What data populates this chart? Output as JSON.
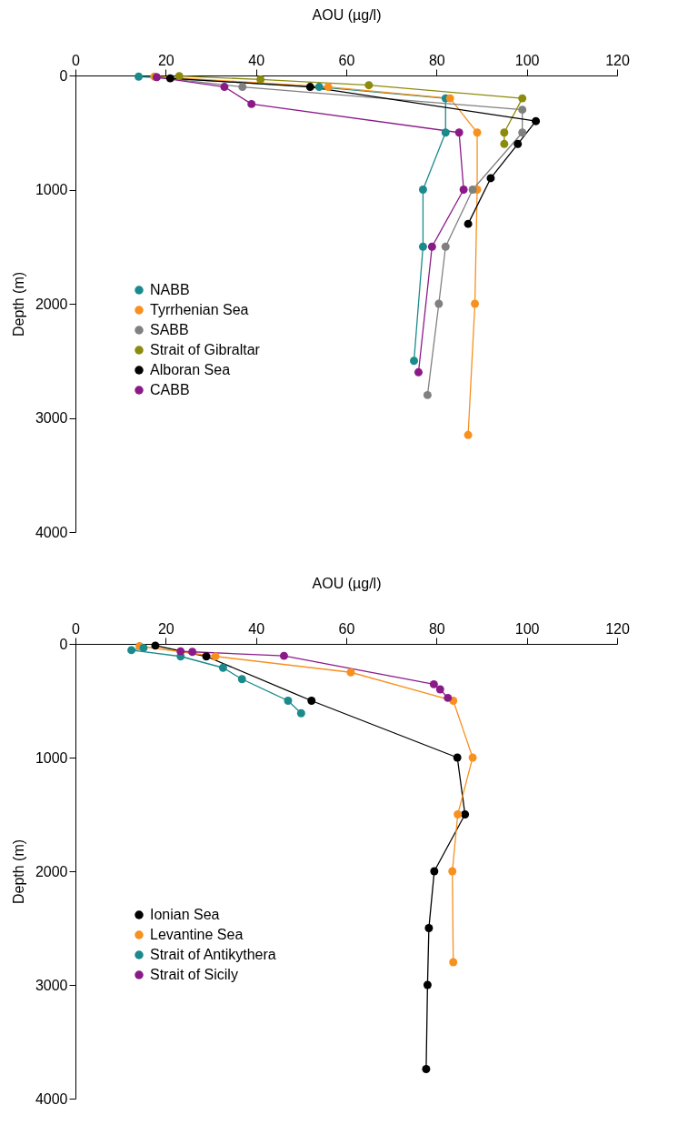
{
  "chart_data": [
    {
      "type": "line",
      "xlabel": "AOU (µg/l)",
      "ylabel": "Depth (m)",
      "xlim": [
        0,
        120
      ],
      "xticks": [
        0,
        20,
        40,
        60,
        80,
        100,
        120
      ],
      "ylim": [
        4000,
        0
      ],
      "yticks": [
        0,
        1000,
        2000,
        3000,
        4000
      ],
      "marker": "circle",
      "legend": "left",
      "series": [
        {
          "name": "NABB",
          "color": "#1b8a8c",
          "x": [
            14,
            54,
            82,
            82,
            77,
            77,
            75
          ],
          "values": [
            10,
            100,
            200,
            500,
            1000,
            1500,
            2500
          ]
        },
        {
          "name": "Tyrrhenian Sea",
          "color": "#f7901e",
          "x": [
            17.5,
            56,
            83,
            89,
            89,
            88.5,
            87
          ],
          "values": [
            10,
            100,
            200,
            500,
            1000,
            2000,
            3150
          ]
        },
        {
          "name": "SABB",
          "color": "#808080",
          "x": [
            18,
            37,
            99,
            99,
            88,
            82,
            80.5,
            78
          ],
          "values": [
            15,
            100,
            300,
            500,
            1000,
            1500,
            2000,
            2800
          ]
        },
        {
          "name": "Strait of Gibraltar",
          "color": "#8b8b0d",
          "x": [
            23,
            41,
            65,
            99,
            95,
            95
          ],
          "values": [
            5,
            35,
            85,
            200,
            500,
            600
          ]
        },
        {
          "name": "Alboran Sea",
          "color": "#000000",
          "x": [
            21,
            52,
            102,
            98,
            92,
            87
          ],
          "values": [
            25,
            100,
            400,
            600,
            900,
            1300
          ]
        },
        {
          "name": "CABB",
          "color": "#8b1a89",
          "x": [
            18,
            33,
            39,
            85,
            86,
            79,
            76
          ],
          "values": [
            15,
            100,
            250,
            500,
            1000,
            1500,
            2600
          ]
        }
      ]
    },
    {
      "type": "line",
      "xlabel": "AOU (µg/l)",
      "ylabel": "Depth (m)",
      "xlim": [
        0,
        120
      ],
      "xticks": [
        0,
        20,
        40,
        60,
        80,
        100,
        120
      ],
      "ylim": [
        4000,
        0
      ],
      "yticks": [
        0,
        1000,
        2000,
        3000,
        4000
      ],
      "marker": "circle",
      "legend": "left",
      "series": [
        {
          "name": "Ionian Sea",
          "color": "#000000",
          "x": [
            17.7,
            29,
            52.3,
            84.6,
            86.3,
            79.5,
            78.3,
            78,
            77.7
          ],
          "values": [
            15,
            110,
            500,
            1000,
            1500,
            2000,
            2500,
            3000,
            3740
          ]
        },
        {
          "name": "Levantine Sea",
          "color": "#f7901e",
          "x": [
            14.2,
            31,
            61,
            83.7,
            88,
            84.7,
            83.5,
            83.7
          ],
          "values": [
            20,
            110,
            250,
            500,
            1000,
            1500,
            2000,
            2800
          ]
        },
        {
          "name": "Strait of Antikythera",
          "color": "#1b8a8c",
          "x": [
            15.1,
            12.4,
            23.3,
            32.7,
            36.9,
            47.1,
            50
          ],
          "values": [
            35,
            55,
            110,
            210,
            310,
            500,
            610
          ]
        },
        {
          "name": "Strait of Sicily",
          "color": "#8b1a89",
          "x": [
            23.3,
            25.9,
            46.2,
            79.4,
            80.8,
            82.5
          ],
          "values": [
            65,
            70,
            105,
            355,
            400,
            475
          ]
        }
      ]
    }
  ]
}
